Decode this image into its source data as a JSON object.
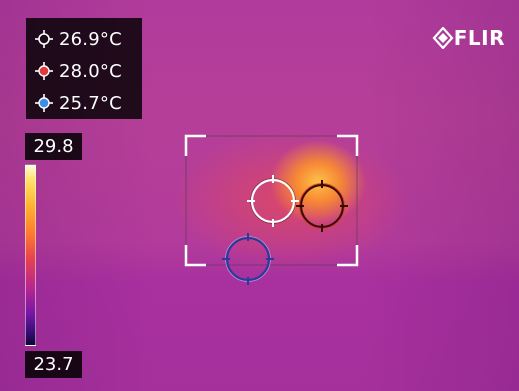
{
  "readouts": [
    {
      "name": "center-spot",
      "value": "26.9°C",
      "color": "#ffffff"
    },
    {
      "name": "hot-spot",
      "value": "28.0°C",
      "color": "#e03a3a"
    },
    {
      "name": "cold-spot",
      "value": "25.7°C",
      "color": "#3a8de8"
    }
  ],
  "brand": {
    "logo_text": "FLIR"
  },
  "scale": {
    "max": "29.8",
    "min": "23.7"
  },
  "icons": {
    "center_marker": "crosshair-white-icon",
    "hot_marker": "crosshair-red-icon",
    "cold_marker": "crosshair-blue-icon",
    "logo": "flir-diamond-icon"
  }
}
